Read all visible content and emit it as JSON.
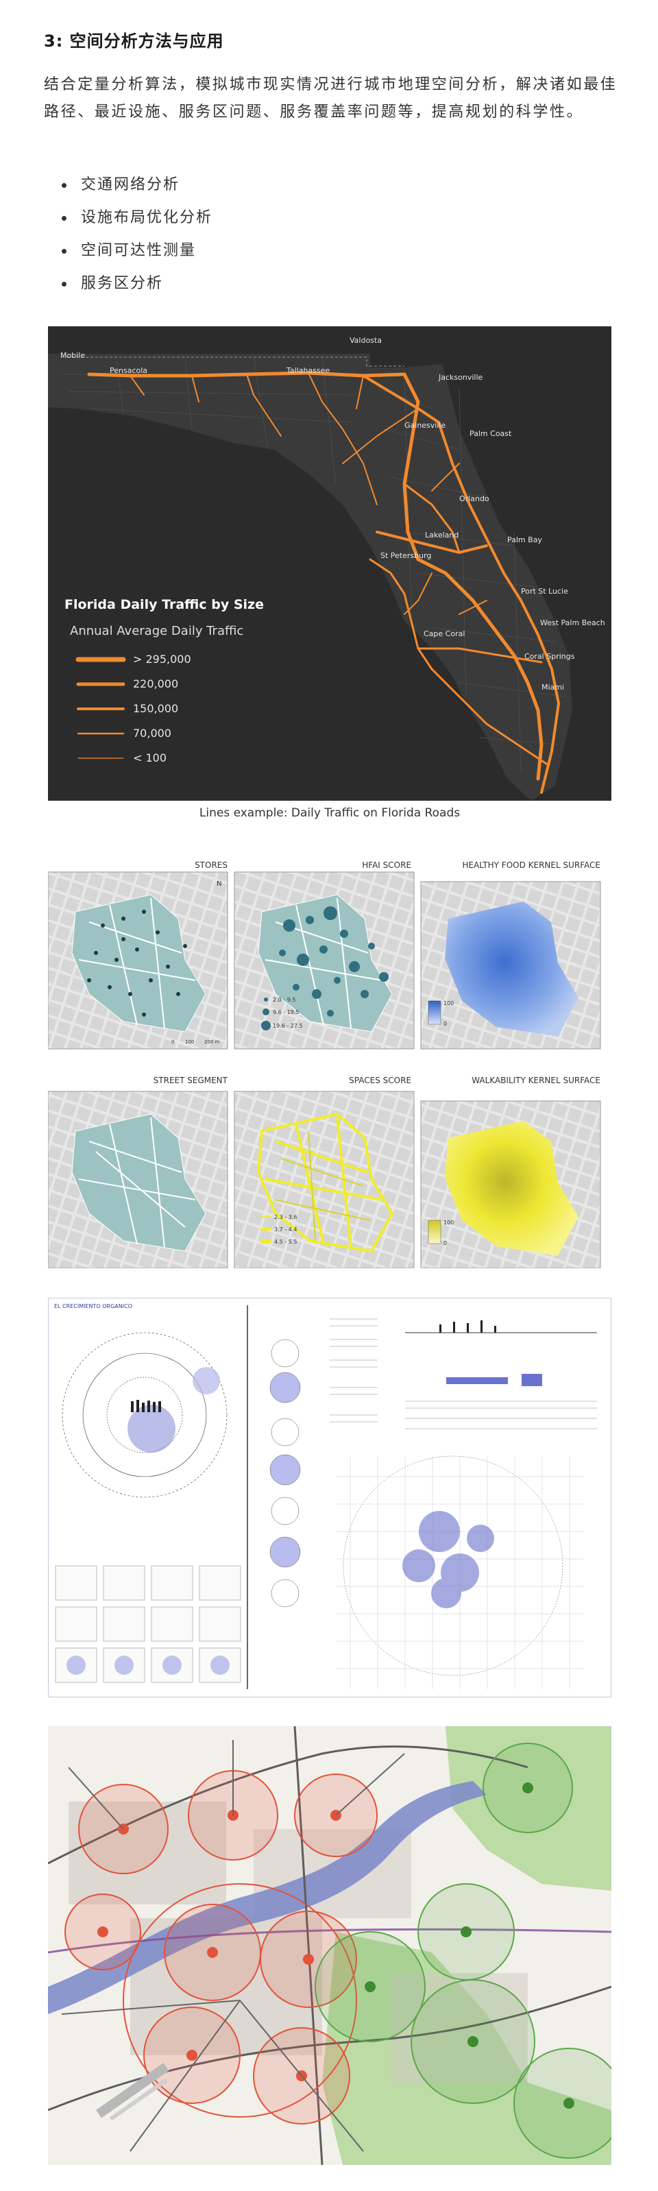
{
  "section_title": "3: 空间分析方法与应用",
  "intro_text": "结合定量分析算法，模拟城市现实情况进行城市地理空间分析，解决诸如最佳路径、最近设施、服务区问题、服务覆盖率问题等，提高规划的科学性。",
  "methods": [
    "交通网络分析",
    "设施布局优化分析",
    "空间可达性测量",
    "服务区分析"
  ],
  "florida_map": {
    "cities": [
      "Valdosta",
      "Mobile",
      "Pensacola",
      "Tallahassee",
      "Jacksonville",
      "Gainesville",
      "Palm Coast",
      "Orlando",
      "Lakeland",
      "Palm Bay",
      "St Petersburg",
      "Port St Lucie",
      "Cape Coral",
      "West Palm Beach",
      "Coral Springs",
      "Miami"
    ],
    "legend_title": "Florida Daily Traffic by Size",
    "legend_subtitle": "Annual Average Daily Traffic",
    "legend_items": [
      "> 295,000",
      "220,000",
      "150,000",
      "70,000",
      "< 100"
    ],
    "line_color": "#f28a2e",
    "caption": "Lines example: Daily Traffic on Florida Roads"
  },
  "kernel_panels": {
    "row1": [
      "STORES",
      "HFAI SCORE",
      "HEALTHY FOOD KERNEL SURFACE"
    ],
    "row2": [
      "STREET SEGMENT",
      "SPACES SCORE",
      "WALKABILITY KERNEL SURFACE"
    ],
    "hfai_legend": [
      "2.0 - 9.5",
      "9.6 - 19.5",
      "19.6 - 27.5"
    ],
    "spaces_legend": [
      "2.3 - 3.6",
      "3.7 - 4.4",
      "4.5 - 5.5"
    ],
    "surface_legend": [
      "100",
      "0"
    ],
    "scale_labels": [
      "0",
      "100",
      "200 m"
    ],
    "north_label": "N",
    "teal_color": "#9cc3c1",
    "blue_color": "#4f7fd6",
    "yellow_color": "#f1ec2c"
  },
  "plate": {
    "heading": "EL CRECIMIENTO ORGANICO"
  },
  "service_map": {
    "red_color": "#e2533b",
    "green_color": "#5aa84a"
  }
}
